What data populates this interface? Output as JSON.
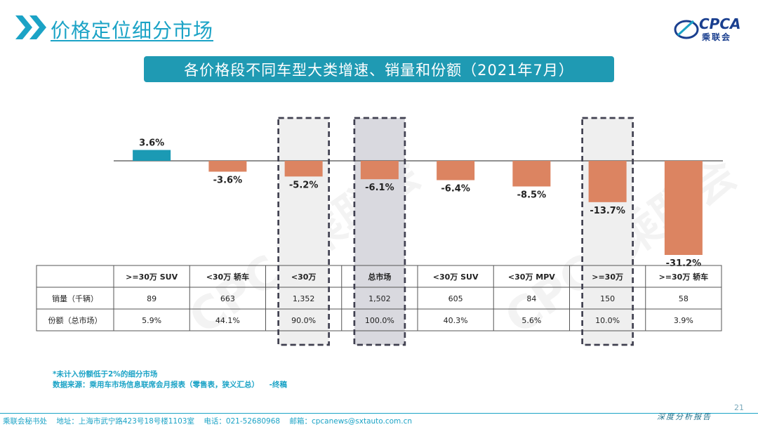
{
  "header": {
    "title": "价格定位细分市场",
    "logo_text": "CPCA",
    "logo_sub": "乘联会"
  },
  "subtitle": "各价格段不同车型大类增速、销量和份额（2021年7月）",
  "watermark": "CPCA乘联会",
  "colors": {
    "positive": "#1b9ab4",
    "negative": "#dc8461",
    "accent": "#1ba3c6"
  },
  "chart_data": {
    "type": "bar",
    "categories": [
      ">=30万 SUV",
      "<30万 轿车",
      "<30万",
      "总市场",
      "<30万 SUV",
      "<30万 MPV",
      ">=30万",
      ">=30万 轿车"
    ],
    "series": [
      {
        "values": [
          3.6,
          -3.6,
          -5.2,
          -6.1,
          -6.4,
          -8.5,
          -13.7,
          -31.2
        ]
      }
    ],
    "labels": [
      "3.6%",
      "-3.6%",
      "-5.2%",
      "-6.1%",
      "-6.4%",
      "-8.5%",
      "-13.7%",
      "-31.2%"
    ],
    "highlighted": [
      "<30万",
      "总市场",
      ">=30万"
    ],
    "table": {
      "col_headers": [
        ">=30万 SUV",
        "<30万 轿车",
        "<30万",
        "总市场",
        "<30万 SUV",
        "<30万 MPV",
        ">=30万",
        ">=30万 轿车"
      ],
      "rows": [
        {
          "label": "销量（千辆）",
          "values": [
            "89",
            "663",
            "1,352",
            "1,502",
            "605",
            "84",
            "150",
            "58"
          ]
        },
        {
          "label": "份额（总市场）",
          "values": [
            "5.9%",
            "44.1%",
            "90.0%",
            "100.0%",
            "40.3%",
            "5.6%",
            "10.0%",
            "3.9%"
          ]
        }
      ]
    }
  },
  "footnotes": [
    "*未计入份额低于2%的细分市场",
    "数据来源：乘用车市场信息联席会月报表（零售表，狭义汇总）    -终稿"
  ],
  "footer": {
    "address": "乘联会秘书处    地址：上海市武宁路423号18号楼1103室    电话：021-52680968    邮箱：cpcanews@sxtauto.com.cn",
    "report": "深度分析报告",
    "page": "21"
  }
}
